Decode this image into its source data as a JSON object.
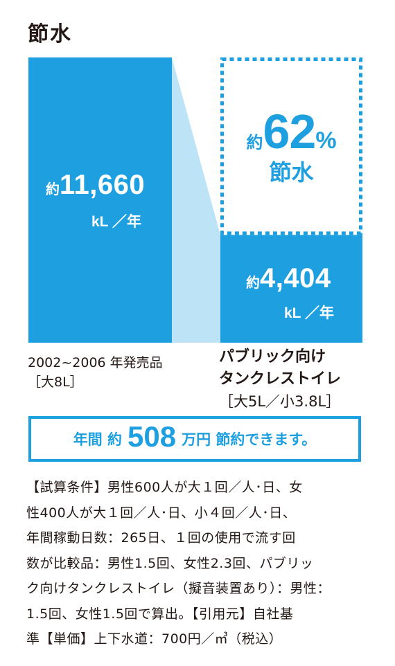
{
  "title": "節水",
  "chart_data": {
    "type": "bar",
    "unit": "kL ／年",
    "categories": [
      "2002~2006 年発売品 ［大8L］",
      "パブリック向け タンクレストイレ ［大5L／小3.8L］"
    ],
    "values": [
      11660,
      4404
    ],
    "colors": {
      "bar": "#1e9fe0",
      "connector": "#bde3f7",
      "saving": "#1e9fe0"
    },
    "bars": [
      {
        "prefix": "約",
        "value_label": "11,660",
        "unit_label": "kL ／年"
      },
      {
        "prefix": "約",
        "value_label": "4,404",
        "unit_label": "kL ／年"
      }
    ],
    "saving": {
      "prefix": "約",
      "percent": "62",
      "percent_sign": "%",
      "label": "節水"
    }
  },
  "labels": {
    "left_line1": "2002~2006 年発売品",
    "left_line2": "［大8L］",
    "right_line1": "パブリック向け",
    "right_line2": "タンクレストイレ",
    "right_line3": "［大5L／小3.8L］"
  },
  "banner": {
    "before": "年間 約",
    "number": "508",
    "after": "万円 節約できます。"
  },
  "notes": [
    "【試算条件】男性600人が大１回／人･日、女",
    "性400人が大１回／人･日、小４回／人･日、",
    "年間稼動日数：265日、１回の使用で流す回",
    "数が比較品：男性1.5回、女性2.3回、パブリッ",
    "ク向けタンクレストイレ（擬音装置あり）：男性：",
    "1.5回、女性1.5回で算出。【引用元】自社基",
    "準【単価】上下水道：700円／㎥（税込）"
  ]
}
